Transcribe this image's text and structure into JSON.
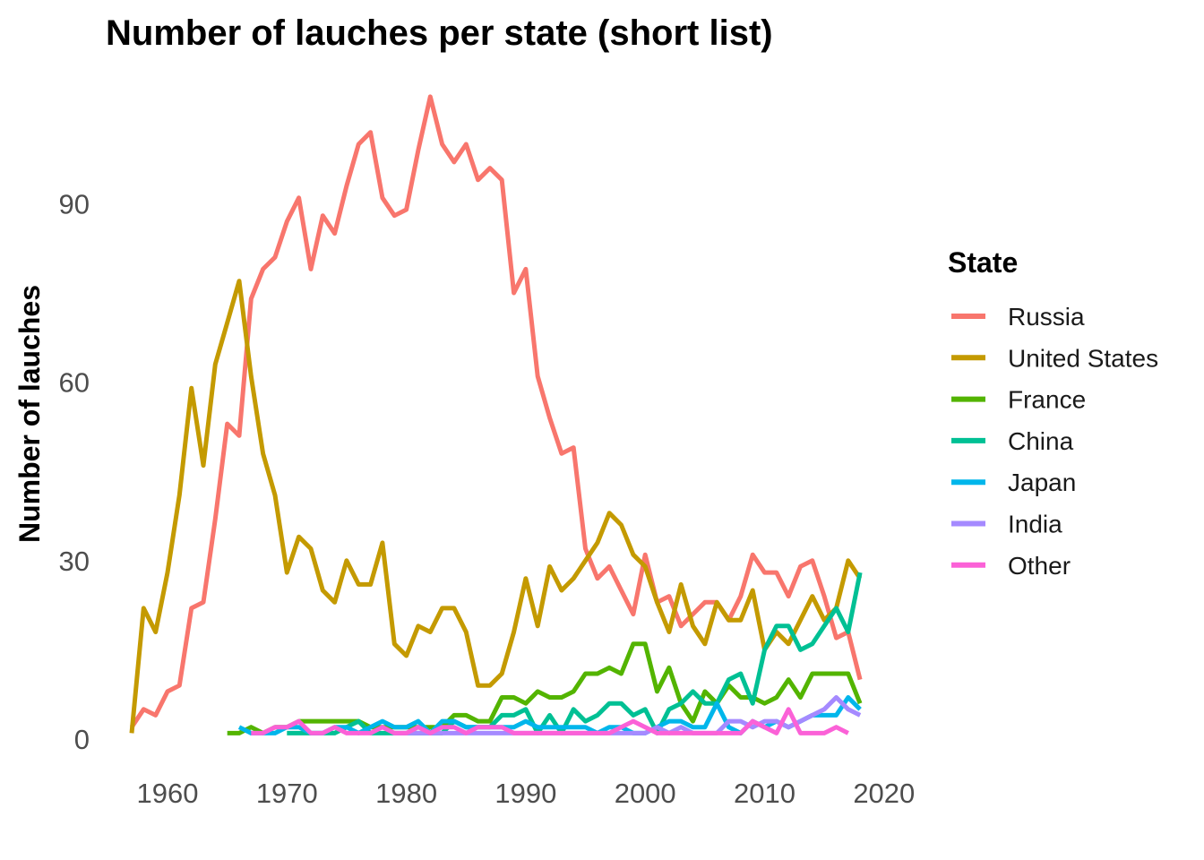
{
  "chart_data": {
    "type": "line",
    "title": "Number of lauches per state (short list)",
    "xlabel": "",
    "ylabel": "Number of lauches",
    "xlim": [
      1957,
      2018
    ],
    "ylim": [
      0,
      110
    ],
    "x_ticks": [
      1960,
      1970,
      1980,
      1990,
      2000,
      2010,
      2020
    ],
    "y_ticks": [
      0,
      30,
      60,
      90
    ],
    "grid": false,
    "legend": {
      "title": "State",
      "placement": "right"
    },
    "series": [
      {
        "name": "Russia",
        "color": "#F8766D",
        "x": [
          1957,
          1958,
          1959,
          1960,
          1961,
          1962,
          1963,
          1964,
          1965,
          1966,
          1967,
          1968,
          1969,
          1970,
          1971,
          1972,
          1973,
          1974,
          1975,
          1976,
          1977,
          1978,
          1979,
          1980,
          1981,
          1982,
          1983,
          1984,
          1985,
          1986,
          1987,
          1988,
          1989,
          1990,
          1991,
          1992,
          1993,
          1994,
          1995,
          1996,
          1997,
          1998,
          1999,
          2000,
          2001,
          2002,
          2003,
          2004,
          2005,
          2006,
          2007,
          2008,
          2009,
          2010,
          2011,
          2012,
          2013,
          2014,
          2015,
          2016,
          2017,
          2018
        ],
        "y": [
          2,
          5,
          4,
          8,
          9,
          22,
          23,
          37,
          53,
          51,
          74,
          79,
          81,
          87,
          91,
          79,
          88,
          85,
          93,
          100,
          102,
          91,
          88,
          89,
          99,
          108,
          100,
          97,
          100,
          94,
          96,
          94,
          75,
          79,
          61,
          54,
          48,
          49,
          32,
          27,
          29,
          25,
          21,
          31,
          23,
          24,
          19,
          21,
          23,
          23,
          20,
          24,
          31,
          28,
          28,
          24,
          29,
          30,
          24,
          17,
          18,
          10
        ]
      },
      {
        "name": "United States",
        "color": "#C49A00",
        "x": [
          1957,
          1958,
          1959,
          1960,
          1961,
          1962,
          1963,
          1964,
          1965,
          1966,
          1967,
          1968,
          1969,
          1970,
          1971,
          1972,
          1973,
          1974,
          1975,
          1976,
          1977,
          1978,
          1979,
          1980,
          1981,
          1982,
          1983,
          1984,
          1985,
          1986,
          1987,
          1988,
          1989,
          1990,
          1991,
          1992,
          1993,
          1994,
          1995,
          1996,
          1997,
          1998,
          1999,
          2000,
          2001,
          2002,
          2003,
          2004,
          2005,
          2006,
          2007,
          2008,
          2009,
          2010,
          2011,
          2012,
          2013,
          2014,
          2015,
          2016,
          2017,
          2018
        ],
        "y": [
          1,
          22,
          18,
          28,
          41,
          59,
          46,
          63,
          70,
          77,
          61,
          48,
          41,
          28,
          34,
          32,
          25,
          23,
          30,
          26,
          26,
          33,
          16,
          14,
          19,
          18,
          22,
          22,
          18,
          9,
          9,
          11,
          18,
          27,
          19,
          29,
          25,
          27,
          30,
          33,
          38,
          36,
          31,
          29,
          23,
          18,
          26,
          19,
          16,
          23,
          20,
          20,
          25,
          15,
          18,
          16,
          20,
          24,
          20,
          22,
          30,
          27
        ]
      },
      {
        "name": "France",
        "color": "#53B400",
        "x": [
          1965,
          1966,
          1967,
          1968,
          1969,
          1970,
          1971,
          1972,
          1973,
          1974,
          1975,
          1976,
          1977,
          1978,
          1979,
          1980,
          1981,
          1982,
          1983,
          1984,
          1985,
          1986,
          1987,
          1988,
          1989,
          1990,
          1991,
          1992,
          1993,
          1994,
          1995,
          1996,
          1997,
          1998,
          1999,
          2000,
          2001,
          2002,
          2003,
          2004,
          2005,
          2006,
          2007,
          2008,
          2009,
          2010,
          2011,
          2012,
          2013,
          2014,
          2015,
          2016,
          2017,
          2018
        ],
        "y": [
          1,
          1,
          2,
          1,
          2,
          2,
          3,
          3,
          3,
          3,
          3,
          3,
          2,
          2,
          2,
          2,
          2,
          2,
          2,
          4,
          4,
          3,
          3,
          7,
          7,
          6,
          8,
          7,
          7,
          8,
          11,
          11,
          12,
          11,
          16,
          16,
          8,
          12,
          6,
          3,
          8,
          6,
          9,
          7,
          7,
          6,
          7,
          10,
          7,
          11,
          11,
          11,
          11,
          6
        ]
      },
      {
        "name": "China",
        "color": "#00C094",
        "x": [
          1970,
          1971,
          1972,
          1973,
          1974,
          1975,
          1976,
          1977,
          1978,
          1979,
          1980,
          1981,
          1982,
          1983,
          1984,
          1985,
          1986,
          1987,
          1988,
          1989,
          1990,
          1991,
          1992,
          1993,
          1994,
          1995,
          1996,
          1997,
          1998,
          1999,
          2000,
          2001,
          2002,
          2003,
          2004,
          2005,
          2006,
          2007,
          2008,
          2009,
          2010,
          2011,
          2012,
          2013,
          2014,
          2015,
          2016,
          2017,
          2018
        ],
        "y": [
          1,
          1,
          1,
          1,
          1,
          2,
          3,
          1,
          1,
          1,
          1,
          1,
          1,
          1,
          3,
          2,
          2,
          2,
          4,
          4,
          5,
          1,
          4,
          1,
          5,
          3,
          4,
          6,
          6,
          4,
          5,
          1,
          5,
          6,
          8,
          6,
          6,
          10,
          11,
          6,
          15,
          19,
          19,
          15,
          16,
          19,
          22,
          18,
          28
        ]
      },
      {
        "name": "Japan",
        "color": "#00B6EB",
        "x": [
          1966,
          1967,
          1968,
          1969,
          1970,
          1971,
          1972,
          1973,
          1974,
          1975,
          1976,
          1977,
          1978,
          1979,
          1980,
          1981,
          1982,
          1983,
          1984,
          1985,
          1986,
          1987,
          1988,
          1989,
          1990,
          1991,
          1992,
          1993,
          1994,
          1995,
          1996,
          1997,
          1998,
          1999,
          2000,
          2001,
          2002,
          2003,
          2004,
          2005,
          2006,
          2007,
          2008,
          2009,
          2010,
          2011,
          2012,
          2013,
          2014,
          2015,
          2016,
          2017,
          2018
        ],
        "y": [
          2,
          1,
          1,
          1,
          2,
          2,
          1,
          1,
          2,
          2,
          1,
          2,
          3,
          2,
          2,
          3,
          1,
          3,
          3,
          2,
          2,
          2,
          2,
          2,
          3,
          2,
          2,
          2,
          2,
          2,
          1,
          2,
          2,
          1,
          1,
          2,
          3,
          3,
          2,
          2,
          6,
          2,
          1,
          3,
          2,
          3,
          2,
          3,
          4,
          4,
          4,
          7,
          5
        ]
      },
      {
        "name": "India",
        "color": "#A58AFF",
        "x": [
          1979,
          1980,
          1981,
          1982,
          1983,
          1984,
          1985,
          1986,
          1987,
          1988,
          1989,
          1990,
          1991,
          1992,
          1993,
          1994,
          1995,
          1996,
          1997,
          1998,
          1999,
          2000,
          2001,
          2002,
          2003,
          2004,
          2005,
          2006,
          2007,
          2008,
          2009,
          2010,
          2011,
          2012,
          2013,
          2014,
          2015,
          2016,
          2017,
          2018
        ],
        "y": [
          1,
          1,
          1,
          1,
          1,
          1,
          1,
          1,
          1,
          1,
          1,
          1,
          1,
          1,
          1,
          1,
          1,
          1,
          1,
          1,
          1,
          1,
          2,
          1,
          2,
          1,
          1,
          1,
          3,
          3,
          2,
          3,
          3,
          2,
          3,
          4,
          5,
          7,
          5,
          4
        ]
      },
      {
        "name": "Other",
        "color": "#FB61D7",
        "x": [
          1967,
          1968,
          1969,
          1970,
          1971,
          1972,
          1973,
          1974,
          1975,
          1976,
          1977,
          1978,
          1979,
          1980,
          1981,
          1982,
          1983,
          1984,
          1985,
          1986,
          1987,
          1988,
          1989,
          1990,
          1991,
          1992,
          1993,
          1994,
          1995,
          1996,
          1997,
          1998,
          1999,
          2000,
          2001,
          2002,
          2003,
          2004,
          2005,
          2006,
          2007,
          2008,
          2009,
          2010,
          2011,
          2012,
          2013,
          2014,
          2015,
          2016,
          2017
        ],
        "y": [
          1,
          1,
          2,
          2,
          3,
          1,
          1,
          2,
          1,
          1,
          1,
          2,
          1,
          1,
          2,
          1,
          2,
          2,
          1,
          2,
          2,
          2,
          1,
          1,
          1,
          1,
          1,
          1,
          1,
          1,
          1,
          2,
          3,
          2,
          1,
          1,
          1,
          1,
          1,
          1,
          1,
          1,
          3,
          2,
          1,
          5,
          1,
          1,
          1,
          2,
          1
        ]
      }
    ]
  }
}
